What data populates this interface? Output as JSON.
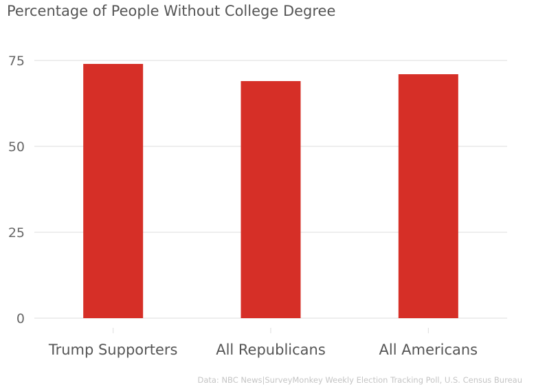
{
  "chart_data": {
    "type": "bar",
    "title": "Percentage of People Without College Degree",
    "categories": [
      "Trump Supporters",
      "All Republicans",
      "All Americans"
    ],
    "values": [
      74,
      69,
      71
    ],
    "xlabel": "",
    "ylabel": "",
    "ylim": [
      0,
      75
    ],
    "yticks": [
      0,
      25,
      50,
      75
    ],
    "grid": true,
    "legend": "none",
    "source": "Data: NBC News|SurveyMonkey Weekly Election Tracking Poll, U.S. Census Bureau"
  },
  "colors": {
    "bar": "#d62f27",
    "grid": "#dddddd",
    "tick_label": "#666666",
    "category_label": "#555555",
    "title": "#555555",
    "source": "#c4c4c4"
  }
}
